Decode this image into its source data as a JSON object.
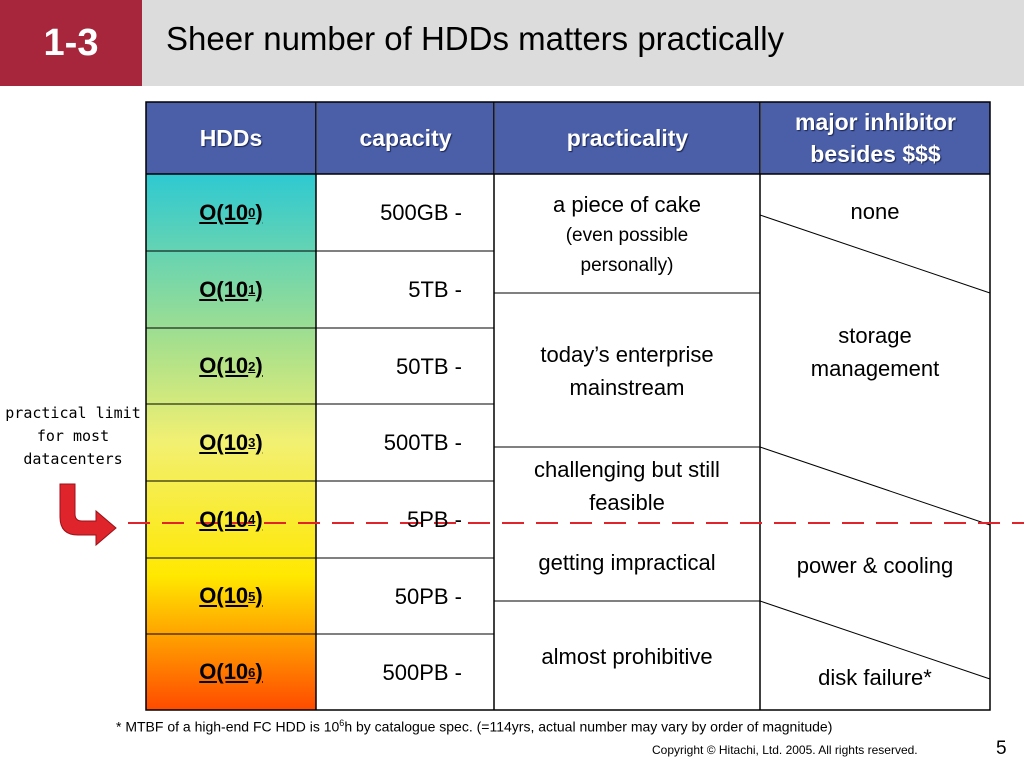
{
  "slide": {
    "number": "1-3",
    "title": "Sheer number of HDDs matters practically"
  },
  "table": {
    "headers": {
      "hdds": "HDDs",
      "capacity": "capacity",
      "practicality": "practicality",
      "inhibitor_line1": "major inhibitor",
      "inhibitor_line2": "besides $$$"
    },
    "rows": [
      {
        "hdd_base": "O(10",
        "hdd_exp": "0",
        "hdd_close": ")",
        "capacity": "500GB -"
      },
      {
        "hdd_base": "O(10",
        "hdd_exp": "1",
        "hdd_close": ")",
        "capacity": "5TB -"
      },
      {
        "hdd_base": "O(10",
        "hdd_exp": "2",
        "hdd_close": ")",
        "capacity": "50TB -"
      },
      {
        "hdd_base": "O(10",
        "hdd_exp": "3",
        "hdd_close": ")",
        "capacity": "500TB -"
      },
      {
        "hdd_base": "O(10",
        "hdd_exp": "4",
        "hdd_close": ")",
        "capacity": "5PB -"
      },
      {
        "hdd_base": "O(10",
        "hdd_exp": "5",
        "hdd_close": ")",
        "capacity": "50PB -"
      },
      {
        "hdd_base": "O(10",
        "hdd_exp": "6",
        "hdd_close": ")",
        "capacity": "500PB -"
      }
    ],
    "practicality": {
      "cake": "a piece of cake",
      "cake_note1": "(even possible",
      "cake_note2": "personally)",
      "enterprise1": "today’s enterprise",
      "enterprise2": "mainstream",
      "challenging1": "challenging but still",
      "challenging2": "feasible",
      "impractical": "getting impractical",
      "prohibitive": "almost prohibitive"
    },
    "inhibitors": {
      "none": "none",
      "storage1": "storage",
      "storage2": "management",
      "power": "power & cooling",
      "disk": "disk failure*"
    }
  },
  "side_note": {
    "line1": "practical limit",
    "line2": "for most",
    "line3": "datacenters"
  },
  "footnote": {
    "before": "* MTBF of a high-end FC HDD is 10",
    "exp": "6",
    "after": "h by catalogue spec. (=114yrs, actual number may vary by order of magnitude)"
  },
  "copyright": "Copyright © Hitachi, Ltd. 2005. All rights reserved.",
  "page_number": "5",
  "colors": {
    "slide_number_bg": "#a8263c",
    "header_bg": "#4a5fa8",
    "limit_line": "#e0242c"
  }
}
